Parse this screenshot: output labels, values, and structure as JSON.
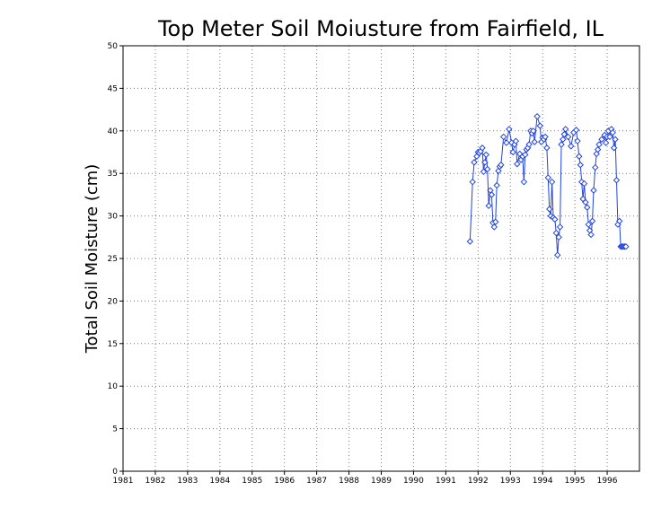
{
  "chart_data": {
    "type": "line",
    "title": "Top Meter Soil Moiusture from Fairfield, IL",
    "xlabel": "",
    "ylabel": "Total Soil Moisture (cm)",
    "xlim": [
      1981,
      1997
    ],
    "ylim": [
      0,
      50
    ],
    "x_ticks": [
      1981,
      1982,
      1983,
      1984,
      1985,
      1986,
      1987,
      1988,
      1989,
      1990,
      1991,
      1992,
      1993,
      1994,
      1995,
      1996
    ],
    "x_tick_labels": [
      "1981",
      "1982",
      "1983",
      "1984",
      "1985",
      "1986",
      "1987",
      "1988",
      "1989",
      "1990",
      "1991",
      "1992",
      "1993",
      "1994",
      "1995",
      "1996"
    ],
    "y_ticks": [
      0,
      5,
      10,
      15,
      20,
      25,
      30,
      35,
      40,
      45,
      50
    ],
    "y_tick_labels": [
      "0",
      "5",
      "10",
      "15",
      "20",
      "25",
      "30",
      "35",
      "40",
      "45",
      "50"
    ],
    "grid": true,
    "grid_style": "dotted",
    "series_color": "#2244dd",
    "marker": "diamond",
    "series": [
      {
        "x": [
          1991.75,
          1991.83,
          1991.88,
          1991.96,
          1992.0,
          1992.04,
          1992.08,
          1992.13,
          1992.17,
          1992.21,
          1992.25,
          1992.29,
          1992.33,
          1992.38,
          1992.42,
          1992.46,
          1992.5,
          1992.54,
          1992.58,
          1992.63,
          1992.67,
          1992.71,
          1992.79,
          1992.88,
          1992.96,
          1993.04,
          1993.08,
          1993.13,
          1993.17,
          1993.21,
          1993.29,
          1993.33,
          1993.38,
          1993.42,
          1993.46,
          1993.5,
          1993.54,
          1993.58,
          1993.63,
          1993.67,
          1993.71,
          1993.75,
          1993.83,
          1993.92,
          1993.96,
          1994.0,
          1994.04,
          1994.08,
          1994.13,
          1994.17,
          1994.21,
          1994.25,
          1994.29,
          1994.33,
          1994.38,
          1994.42,
          1994.46,
          1994.5,
          1994.54,
          1994.58,
          1994.63,
          1994.67,
          1994.71,
          1994.79,
          1994.88,
          1994.96,
          1995.04,
          1995.08,
          1995.13,
          1995.17,
          1995.21,
          1995.25,
          1995.29,
          1995.33,
          1995.38,
          1995.42,
          1995.46,
          1995.5,
          1995.54,
          1995.58,
          1995.63,
          1995.67,
          1995.71,
          1995.75,
          1995.83,
          1995.92,
          1995.96,
          1996.0,
          1996.04,
          1996.08,
          1996.13,
          1996.17,
          1996.21,
          1996.25,
          1996.29,
          1996.33,
          1996.38,
          1996.42,
          1996.46,
          1996.5,
          1996.54,
          1996.58
        ],
        "values": [
          27.0,
          34.0,
          36.3,
          37.0,
          37.5,
          37.4,
          37.6,
          38.0,
          35.2,
          36.3,
          37.2,
          35.5,
          31.2,
          33.0,
          32.5,
          29.2,
          28.7,
          29.3,
          33.6,
          35.3,
          35.8,
          36.0,
          39.3,
          38.6,
          40.2,
          38.6,
          37.5,
          38.4,
          38.8,
          36.1,
          37.3,
          36.6,
          37.0,
          34.0,
          37.2,
          37.8,
          38.0,
          38.4,
          40.0,
          39.7,
          40.0,
          38.7,
          41.7,
          40.6,
          38.7,
          39.2,
          39.0,
          39.3,
          38.0,
          34.5,
          30.8,
          30.0,
          34.0,
          29.8,
          29.6,
          28.0,
          25.4,
          27.5,
          28.7,
          38.4,
          39.0,
          39.6,
          40.2,
          39.3,
          38.2,
          39.8,
          40.1,
          38.8,
          37.0,
          36.0,
          34.0,
          32.0,
          33.8,
          31.6,
          31.0,
          29.0,
          28.3,
          27.8,
          29.4,
          33.0,
          35.7,
          37.3,
          37.8,
          38.4,
          39.0,
          39.5,
          38.6,
          39.3,
          40.0,
          39.3,
          40.2,
          39.8,
          38.0,
          39.0,
          34.2,
          29.0,
          29.4,
          26.4,
          26.4,
          26.4,
          26.4,
          26.4
        ]
      }
    ]
  }
}
